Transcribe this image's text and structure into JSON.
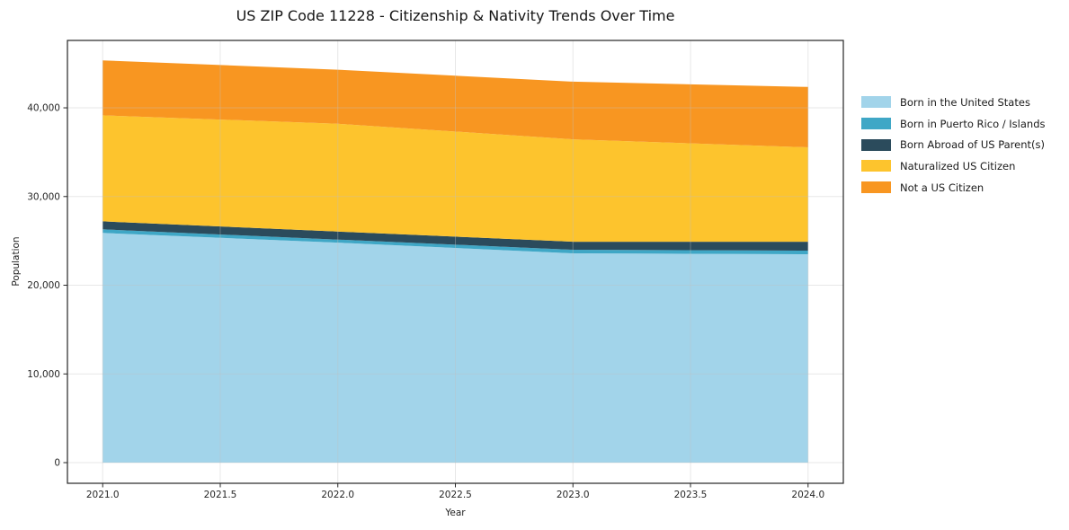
{
  "chart_data": {
    "type": "area",
    "stacked": true,
    "title": "US ZIP Code 11228 - Citizenship & Nativity Trends Over Time",
    "xlabel": "Year",
    "ylabel": "Population",
    "x": [
      2021,
      2022,
      2023,
      2024
    ],
    "series": [
      {
        "name": "Born in the United States",
        "color": "#a2d4ea",
        "values": [
          25900,
          24800,
          23600,
          23500
        ]
      },
      {
        "name": "Born in Puerto Rico / Islands",
        "color": "#3fa7c6",
        "values": [
          400,
          350,
          400,
          400
        ]
      },
      {
        "name": "Born Abroad of US Parent(s)",
        "color": "#2b4b5c",
        "values": [
          900,
          900,
          900,
          1000
        ]
      },
      {
        "name": "Naturalized US Citizen",
        "color": "#fdc42d",
        "values": [
          11950,
          12150,
          11550,
          10650
        ]
      },
      {
        "name": "Not a US Citizen",
        "color": "#f89621",
        "values": [
          6200,
          6100,
          6500,
          6800
        ]
      }
    ],
    "x_ticks": {
      "values": [
        2021,
        2021.5,
        2022,
        2022.5,
        2023,
        2023.5,
        2024
      ],
      "labels": [
        "2021.0",
        "2021.5",
        "2022.0",
        "2022.5",
        "2023.0",
        "2023.5",
        "2024.0"
      ]
    },
    "y_ticks": {
      "values": [
        0,
        10000,
        20000,
        30000,
        40000
      ],
      "labels": [
        "0",
        "10,000",
        "20,000",
        "30,000",
        "40,000"
      ]
    },
    "xlim": [
      2020.85,
      2024.15
    ],
    "ylim": [
      -2330,
      47600
    ],
    "grid": true,
    "legend_position": "right",
    "colors": {
      "spine": "#262626",
      "tick_text": "#262626",
      "gridline": "#bfbfbf"
    }
  }
}
